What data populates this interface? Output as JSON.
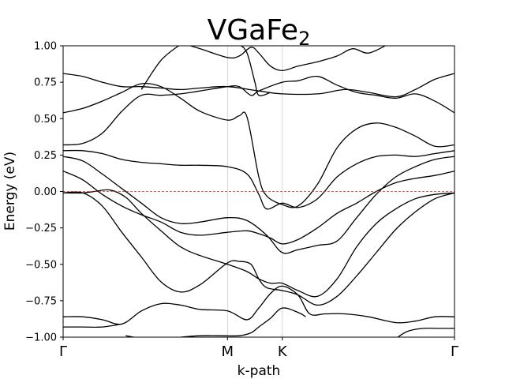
{
  "chart_data": {
    "type": "line",
    "title_main": "VGaFe",
    "title_sub": "2",
    "xlabel": "k-path",
    "ylabel": "Energy (eV)",
    "ylim": [
      -1.0,
      1.0
    ],
    "xlim": [
      0,
      1
    ],
    "yticks": [
      -1.0,
      -0.75,
      -0.5,
      -0.25,
      0.0,
      0.25,
      0.5,
      0.75,
      1.0
    ],
    "ytick_labels": [
      "−1.00",
      "−0.75",
      "−0.50",
      "−0.25",
      "0.00",
      "0.25",
      "0.50",
      "0.75",
      "1.00"
    ],
    "kpoints": [
      {
        "label": "Γ",
        "x": 0.0
      },
      {
        "label": "M",
        "x": 0.42
      },
      {
        "label": "K",
        "x": 0.56
      },
      {
        "label": "Γ",
        "x": 1.0
      }
    ],
    "fermi_level": 0.0,
    "fermi_color": "#d62728",
    "band_color": "#000000",
    "vline_color": "#cccccc",
    "series": [
      {
        "points": [
          [
            0,
            0.81
          ],
          [
            0.05,
            0.79
          ],
          [
            0.1,
            0.75
          ],
          [
            0.15,
            0.72
          ],
          [
            0.2,
            0.72
          ],
          [
            0.25,
            0.71
          ],
          [
            0.3,
            0.7
          ],
          [
            0.35,
            0.71
          ],
          [
            0.42,
            0.72
          ],
          [
            0.5,
            0.69
          ],
          [
            0.56,
            0.67
          ],
          [
            0.65,
            0.67
          ],
          [
            0.72,
            0.7
          ],
          [
            0.78,
            0.68
          ],
          [
            0.85,
            0.65
          ],
          [
            0.9,
            0.7
          ],
          [
            0.95,
            0.77
          ],
          [
            1.0,
            0.81
          ]
        ]
      },
      {
        "points": [
          [
            0,
            0.54
          ],
          [
            0.05,
            0.57
          ],
          [
            0.1,
            0.62
          ],
          [
            0.15,
            0.68
          ],
          [
            0.2,
            0.74
          ],
          [
            0.25,
            0.72
          ],
          [
            0.3,
            0.64
          ],
          [
            0.35,
            0.55
          ],
          [
            0.42,
            0.49
          ],
          [
            0.45,
            0.52
          ],
          [
            0.47,
            0.51
          ],
          [
            0.5,
            0.1
          ],
          [
            0.52,
            -0.03
          ],
          [
            0.56,
            -0.09
          ],
          [
            0.6,
            -0.1
          ],
          [
            0.65,
            0.05
          ],
          [
            0.7,
            0.3
          ],
          [
            0.75,
            0.43
          ],
          [
            0.8,
            0.47
          ],
          [
            0.85,
            0.44
          ],
          [
            0.9,
            0.38
          ],
          [
            0.95,
            0.31
          ],
          [
            1.0,
            0.32
          ]
        ]
      },
      {
        "points": [
          [
            0,
            0.32
          ],
          [
            0.05,
            0.33
          ],
          [
            0.1,
            0.4
          ],
          [
            0.15,
            0.55
          ],
          [
            0.2,
            0.66
          ],
          [
            0.25,
            0.66
          ],
          [
            0.3,
            0.67
          ],
          [
            0.35,
            0.69
          ],
          [
            0.42,
            0.72
          ],
          [
            0.45,
            0.72
          ],
          [
            0.48,
            0.66
          ],
          [
            0.5,
            0.69
          ],
          [
            0.56,
            0.75
          ],
          [
            0.6,
            0.76
          ],
          [
            0.65,
            0.79
          ],
          [
            0.7,
            0.73
          ],
          [
            0.75,
            0.68
          ],
          [
            0.8,
            0.66
          ],
          [
            0.85,
            0.64
          ],
          [
            0.9,
            0.67
          ],
          [
            0.95,
            0.62
          ],
          [
            1.0,
            0.54
          ]
        ]
      },
      {
        "points": [
          [
            0,
            0.28
          ],
          [
            0.05,
            0.28
          ],
          [
            0.1,
            0.26
          ],
          [
            0.15,
            0.22
          ],
          [
            0.2,
            0.2
          ],
          [
            0.25,
            0.19
          ],
          [
            0.3,
            0.18
          ],
          [
            0.35,
            0.18
          ],
          [
            0.42,
            0.17
          ],
          [
            0.47,
            0.12
          ],
          [
            0.5,
            -0.02
          ],
          [
            0.52,
            -0.12
          ],
          [
            0.56,
            -0.08
          ],
          [
            0.6,
            -0.11
          ],
          [
            0.65,
            -0.05
          ],
          [
            0.7,
            0.1
          ],
          [
            0.75,
            0.19
          ],
          [
            0.8,
            0.24
          ],
          [
            0.85,
            0.25
          ],
          [
            0.9,
            0.24
          ],
          [
            0.95,
            0.26
          ],
          [
            1.0,
            0.28
          ]
        ]
      },
      {
        "points": [
          [
            0,
            0.24
          ],
          [
            0.05,
            0.21
          ],
          [
            0.1,
            0.12
          ],
          [
            0.15,
            0.02
          ],
          [
            0.2,
            -0.08
          ],
          [
            0.25,
            -0.18
          ],
          [
            0.3,
            -0.22
          ],
          [
            0.35,
            -0.21
          ],
          [
            0.42,
            -0.18
          ],
          [
            0.47,
            -0.2
          ],
          [
            0.52,
            -0.3
          ],
          [
            0.56,
            -0.42
          ],
          [
            0.6,
            -0.4
          ],
          [
            0.65,
            -0.37
          ],
          [
            0.7,
            -0.34
          ],
          [
            0.75,
            -0.18
          ],
          [
            0.8,
            -0.02
          ],
          [
            0.85,
            0.1
          ],
          [
            0.9,
            0.17
          ],
          [
            0.95,
            0.22
          ],
          [
            1.0,
            0.24
          ]
        ]
      },
      {
        "points": [
          [
            0,
            0.14
          ],
          [
            0.05,
            0.08
          ],
          [
            0.1,
            -0.02
          ],
          [
            0.15,
            -0.1
          ],
          [
            0.2,
            -0.16
          ],
          [
            0.25,
            -0.21
          ],
          [
            0.3,
            -0.28
          ],
          [
            0.35,
            -0.3
          ],
          [
            0.42,
            -0.28
          ],
          [
            0.47,
            -0.27
          ],
          [
            0.5,
            -0.29
          ],
          [
            0.53,
            -0.32
          ],
          [
            0.56,
            -0.36
          ],
          [
            0.6,
            -0.33
          ],
          [
            0.65,
            -0.25
          ],
          [
            0.7,
            -0.15
          ],
          [
            0.75,
            -0.08
          ],
          [
            0.8,
            0.0
          ],
          [
            0.85,
            0.06
          ],
          [
            0.9,
            0.09
          ],
          [
            0.95,
            0.11
          ],
          [
            1.0,
            0.14
          ]
        ]
      },
      {
        "points": [
          [
            0,
            -0.01
          ],
          [
            0.05,
            -0.01
          ],
          [
            0.08,
            0.0
          ],
          [
            0.12,
            0.01
          ],
          [
            0.16,
            -0.04
          ],
          [
            0.2,
            -0.15
          ],
          [
            0.25,
            -0.27
          ],
          [
            0.3,
            -0.38
          ],
          [
            0.35,
            -0.44
          ],
          [
            0.42,
            -0.5
          ],
          [
            0.47,
            -0.55
          ],
          [
            0.5,
            -0.6
          ],
          [
            0.53,
            -0.63
          ],
          [
            0.56,
            -0.63
          ],
          [
            0.6,
            -0.68
          ],
          [
            0.65,
            -0.72
          ],
          [
            0.7,
            -0.6
          ],
          [
            0.75,
            -0.38
          ],
          [
            0.8,
            -0.22
          ],
          [
            0.85,
            -0.12
          ],
          [
            0.9,
            -0.05
          ],
          [
            0.95,
            -0.02
          ],
          [
            1.0,
            -0.01
          ]
        ]
      },
      {
        "points": [
          [
            0,
            -0.01
          ],
          [
            0.05,
            -0.01
          ],
          [
            0.1,
            -0.1
          ],
          [
            0.15,
            -0.28
          ],
          [
            0.2,
            -0.45
          ],
          [
            0.25,
            -0.62
          ],
          [
            0.3,
            -0.69
          ],
          [
            0.35,
            -0.64
          ],
          [
            0.42,
            -0.49
          ],
          [
            0.45,
            -0.48
          ],
          [
            0.48,
            -0.5
          ],
          [
            0.5,
            -0.6
          ],
          [
            0.52,
            -0.66
          ],
          [
            0.56,
            -0.68
          ],
          [
            0.6,
            -0.71
          ],
          [
            0.65,
            -0.78
          ],
          [
            0.7,
            -0.72
          ],
          [
            0.75,
            -0.58
          ],
          [
            0.8,
            -0.42
          ],
          [
            0.85,
            -0.26
          ],
          [
            0.9,
            -0.14
          ],
          [
            0.95,
            -0.05
          ],
          [
            1.0,
            -0.01
          ]
        ]
      },
      {
        "points": [
          [
            0,
            -0.86
          ],
          [
            0.05,
            -0.86
          ],
          [
            0.1,
            -0.88
          ],
          [
            0.15,
            -0.91
          ],
          [
            0.2,
            -0.82
          ],
          [
            0.25,
            -0.77
          ],
          [
            0.3,
            -0.78
          ],
          [
            0.35,
            -0.81
          ],
          [
            0.42,
            -0.82
          ],
          [
            0.47,
            -0.88
          ],
          [
            0.5,
            -0.8
          ],
          [
            0.53,
            -0.7
          ],
          [
            0.56,
            -0.65
          ],
          [
            0.6,
            -0.71
          ],
          [
            0.63,
            -0.84
          ],
          [
            0.67,
            -0.84
          ],
          [
            0.72,
            -0.84
          ],
          [
            0.78,
            -0.86
          ],
          [
            0.85,
            -0.9
          ],
          [
            0.9,
            -0.89
          ],
          [
            0.95,
            -0.86
          ],
          [
            1.0,
            -0.86
          ]
        ]
      },
      {
        "points": [
          [
            0,
            -0.93
          ],
          [
            0.05,
            -0.93
          ],
          [
            0.1,
            -0.93
          ],
          [
            0.15,
            -0.91
          ]
        ]
      },
      {
        "points": [
          [
            0.16,
            -0.99
          ],
          [
            0.2,
            -1.01
          ]
        ]
      },
      {
        "points": [
          [
            0.3,
            -1.0
          ],
          [
            0.35,
            -0.99
          ],
          [
            0.4,
            -0.99
          ],
          [
            0.45,
            -0.99
          ],
          [
            0.48,
            -0.97
          ],
          [
            0.5,
            -0.93
          ],
          [
            0.53,
            -0.87
          ],
          [
            0.56,
            -0.8
          ],
          [
            0.6,
            -0.83
          ],
          [
            0.62,
            -0.86
          ]
        ]
      },
      {
        "points": [
          [
            0.85,
            -1.01
          ],
          [
            0.88,
            -0.96
          ],
          [
            0.92,
            -0.94
          ],
          [
            0.96,
            -0.94
          ],
          [
            1.0,
            -0.94
          ]
        ]
      },
      {
        "points": [
          [
            0.3,
            1.02
          ],
          [
            0.35,
            0.98
          ],
          [
            0.42,
            0.92
          ],
          [
            0.45,
            0.93
          ],
          [
            0.48,
            0.99
          ],
          [
            0.5,
            0.95
          ],
          [
            0.53,
            0.86
          ],
          [
            0.56,
            0.83
          ],
          [
            0.6,
            0.86
          ],
          [
            0.65,
            0.89
          ],
          [
            0.7,
            0.93
          ],
          [
            0.74,
            0.98
          ],
          [
            0.78,
            0.95
          ],
          [
            0.83,
            1.01
          ]
        ]
      },
      {
        "points": [
          [
            0.2,
            0.7
          ],
          [
            0.25,
            0.9
          ],
          [
            0.3,
            1.01
          ]
        ]
      },
      {
        "points": [
          [
            0.45,
            1.01
          ],
          [
            0.47,
            0.95
          ],
          [
            0.49,
            0.75
          ],
          [
            0.5,
            0.66
          ],
          [
            0.53,
            0.68
          ]
        ]
      }
    ]
  }
}
